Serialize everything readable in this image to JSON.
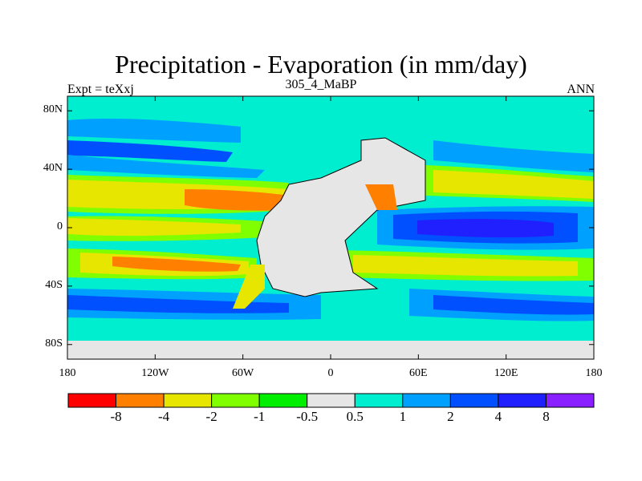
{
  "title": "Precipitation - Evaporation (in mm/day)",
  "left_string": "Expt = teXxj",
  "center_string": "305_4_MaBP",
  "right_string": "ANN",
  "x_ticks": [
    "180",
    "120W",
    "60W",
    "0",
    "60E",
    "120E",
    "180"
  ],
  "y_ticks": [
    "80N",
    "40N",
    "0",
    "40S",
    "80S"
  ],
  "colorbar": {
    "colors": [
      "#ff0000",
      "#ff8000",
      "#e6e600",
      "#80ff00",
      "#00ee00",
      "#e6e6e6",
      "#00eed0",
      "#00a0ff",
      "#0050ff",
      "#2020ff",
      "#8a20ff"
    ],
    "labels": [
      "-8",
      "-4",
      "-2",
      "-1",
      "-0.5",
      "0.5",
      "1",
      "2",
      "4",
      "8"
    ]
  },
  "chart_data": {
    "type": "heatmap",
    "title": "Precipitation - Evaporation (in mm/day)",
    "xlim": [
      -180,
      180
    ],
    "ylim": [
      -90,
      90
    ],
    "levels": [
      -8,
      -4,
      -2,
      -1,
      -0.5,
      0.5,
      1,
      2,
      4,
      8
    ]
  }
}
